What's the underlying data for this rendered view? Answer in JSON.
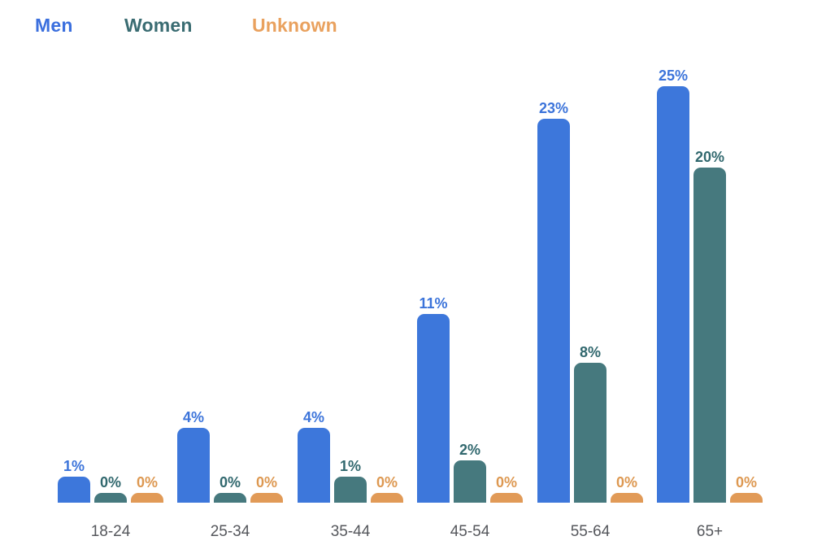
{
  "legend": {
    "items": [
      {
        "label": "Men",
        "color": "#3B6FDE"
      },
      {
        "label": "Women",
        "color": "#3A6C72"
      },
      {
        "label": "Unknown",
        "color": "#E9A15E"
      }
    ]
  },
  "colors": {
    "men_bar": "#3D77DB",
    "women_bar": "#46797E",
    "unknown_bar": "#E19A57",
    "men_value_label": "#3C74DA",
    "women_value_label": "#31686E",
    "unknown_value_label": "#DD9851",
    "axis_tick": "#55575C",
    "background": "#FFFFFF"
  },
  "chart_data": {
    "type": "bar",
    "title": "",
    "xlabel": "",
    "ylabel": "",
    "categories": [
      "18-24",
      "25-34",
      "35-44",
      "45-54",
      "55-64",
      "65+"
    ],
    "series": [
      {
        "name": "Men",
        "color": "#3D77DB",
        "label_color": "#3C74DA",
        "values": [
          1,
          4,
          4,
          11,
          23,
          25
        ]
      },
      {
        "name": "Women",
        "color": "#46797E",
        "label_color": "#31686E",
        "values": [
          0,
          0,
          1,
          2,
          8,
          20
        ]
      },
      {
        "name": "Unknown",
        "color": "#E19A57",
        "label_color": "#DD9851",
        "values": [
          0,
          0,
          0,
          0,
          0,
          0
        ]
      }
    ],
    "value_suffix": "%",
    "value_labels_shown": true,
    "ylim": [
      0,
      27
    ],
    "grid": false,
    "y_axis_shown": false,
    "legend_position": "top-left"
  }
}
